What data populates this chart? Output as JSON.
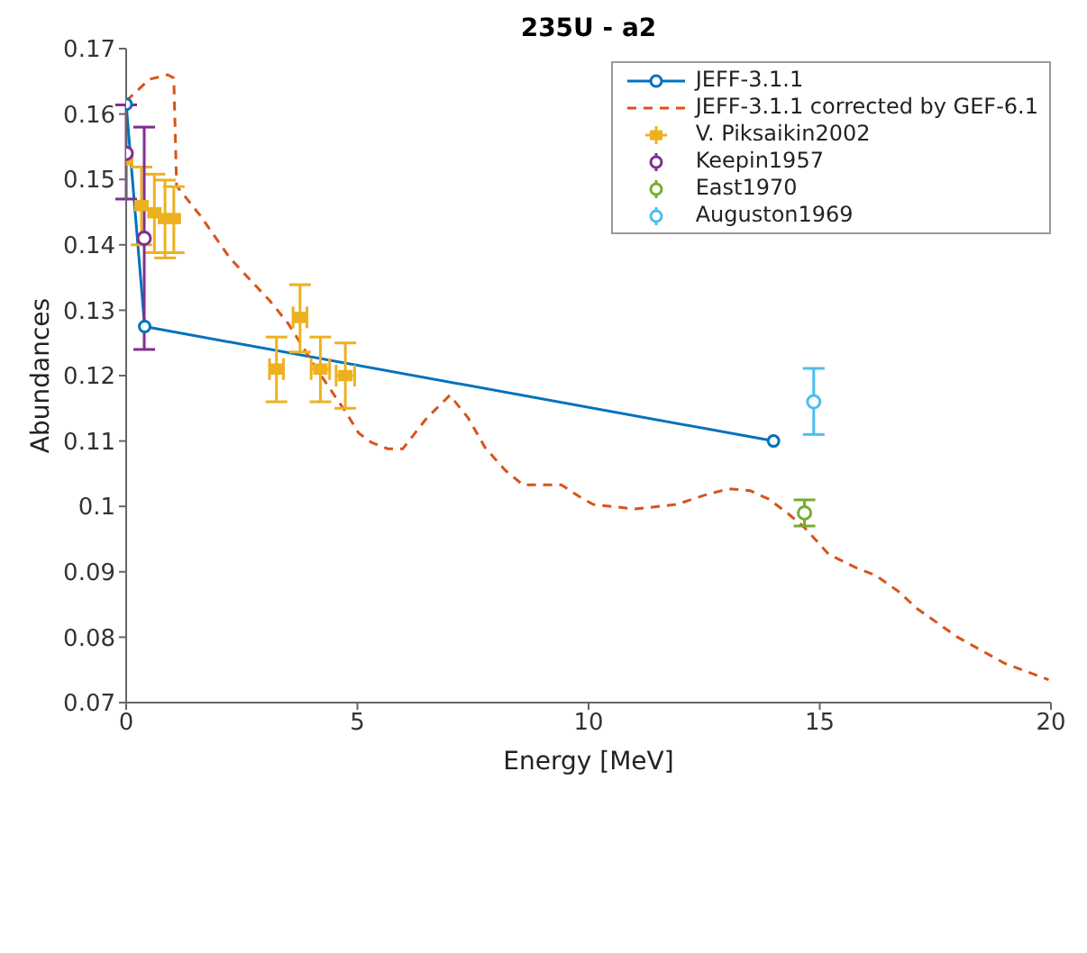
{
  "chart_data": {
    "type": "line",
    "title": "235U - a2",
    "xlabel": "Energy [MeV]",
    "ylabel": "Abundances",
    "xlim": [
      0,
      20
    ],
    "xticks": [
      0,
      5,
      10,
      15,
      20
    ],
    "ylim": [
      0.07,
      0.17
    ],
    "yticks": [
      0.07,
      0.08,
      0.09,
      0.1,
      0.11,
      0.12,
      0.13,
      0.14,
      0.15,
      0.16,
      0.17
    ],
    "grid": false,
    "legend": "top right",
    "series": [
      {
        "name": "JEFF-3.1.1",
        "color": "#0072bd",
        "marker": "circle",
        "line_style": "solid",
        "x": [
          0,
          0.4,
          14
        ],
        "values": [
          0.1615,
          0.1275,
          0.11
        ]
      },
      {
        "name": "JEFF-3.1.1 corrected by GEF-6.1",
        "color": "#d95319",
        "marker": "none",
        "line_style": "dashed",
        "x": [
          0,
          0.5,
          0.9,
          1.03,
          1.09,
          1.6,
          2.24,
          2.7,
          3.1,
          3.5,
          4.14,
          4.77,
          5.03,
          5.3,
          5.66,
          5.98,
          6.5,
          7.0,
          7.4,
          7.76,
          8.2,
          8.58,
          9.41,
          9.8,
          10.1,
          11.0,
          11.9,
          12.5,
          13.03,
          13.5,
          13.9,
          14.3,
          14.68,
          15.19,
          15.82,
          16.2,
          16.7,
          17.1,
          17.98,
          19.0,
          19.95
        ],
        "values": [
          0.162,
          0.1653,
          0.166,
          0.1655,
          0.149,
          0.1445,
          0.138,
          0.1345,
          0.1315,
          0.128,
          0.1208,
          0.1142,
          0.1112,
          0.1098,
          0.1088,
          0.1088,
          0.1135,
          0.117,
          0.1135,
          0.109,
          0.1055,
          0.1033,
          0.1033,
          0.1015,
          0.1003,
          0.0996,
          0.1003,
          0.1017,
          0.1027,
          0.1024,
          0.1011,
          0.099,
          0.0967,
          0.0927,
          0.0905,
          0.0895,
          0.087,
          0.0844,
          0.08,
          0.076,
          0.0735
        ]
      },
      {
        "name": "V. Piksaikin2002",
        "type": "scatter",
        "color": "#edb120",
        "marker": "square",
        "x": [
          0,
          0.33,
          0.61,
          0.84,
          1.03,
          3.25,
          3.76,
          4.2,
          4.74
        ],
        "values": [
          0.153,
          0.146,
          0.1449,
          0.144,
          0.144,
          0.121,
          0.1289,
          0.121,
          0.12
        ],
        "errors": [
          null,
          [
            0.14,
            0.1519
          ],
          [
            0.1388,
            0.1508
          ],
          [
            0.138,
            0.1499
          ],
          [
            0.1388,
            0.1489
          ],
          [
            0.116,
            0.1259
          ],
          [
            0.1236,
            0.1339
          ],
          [
            0.116,
            0.1259
          ],
          [
            0.115,
            0.125
          ]
        ],
        "xerrors": [
          null,
          null,
          null,
          null,
          null,
          0.15,
          0.15,
          0.2,
          0.2
        ]
      },
      {
        "name": "Keepin1957",
        "type": "scatter",
        "color": "#7e2f8e",
        "marker": "circle",
        "x": [
          0,
          0.39
        ],
        "values": [
          0.154,
          0.141
        ],
        "errors": [
          [
            0.147,
            0.1614
          ],
          [
            0.124,
            0.158
          ]
        ]
      },
      {
        "name": "East1970",
        "type": "scatter",
        "color": "#77ac30",
        "marker": "circle",
        "x": [
          14.67
        ],
        "values": [
          0.099
        ],
        "errors": [
          [
            0.097,
            0.101
          ]
        ]
      },
      {
        "name": "Auguston1969",
        "type": "scatter",
        "color": "#4dbeee",
        "marker": "circle",
        "x": [
          14.87
        ],
        "values": [
          0.116
        ],
        "errors": [
          [
            0.111,
            0.1211
          ]
        ]
      }
    ]
  }
}
